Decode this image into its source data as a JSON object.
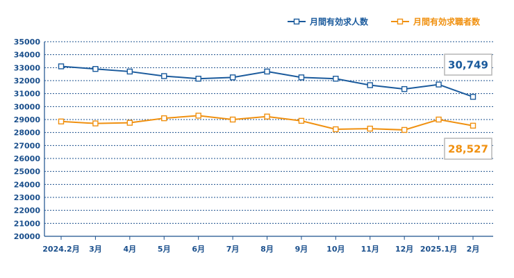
{
  "chart_data": {
    "type": "line",
    "categories": [
      "2024.2月",
      "3月",
      "4月",
      "5月",
      "6月",
      "7月",
      "8月",
      "9月",
      "10月",
      "11月",
      "12月",
      "2025.1月",
      "2月"
    ],
    "ylim": [
      20000,
      35000
    ],
    "ytick_step": 1000,
    "grid": true,
    "legend_position": "top-right",
    "series": [
      {
        "name": "月間有効求人数",
        "color": "#1a5a9c",
        "values": [
          33100,
          32900,
          32700,
          32350,
          32150,
          32250,
          32700,
          32250,
          32150,
          31650,
          31350,
          31700,
          30749
        ],
        "callout": "30,749"
      },
      {
        "name": "月間有効求職者数",
        "color": "#f0900f",
        "values": [
          28850,
          28700,
          28750,
          29100,
          29300,
          29000,
          29230,
          28900,
          28250,
          28300,
          28200,
          29000,
          28527
        ],
        "callout": "28,527"
      }
    ]
  }
}
